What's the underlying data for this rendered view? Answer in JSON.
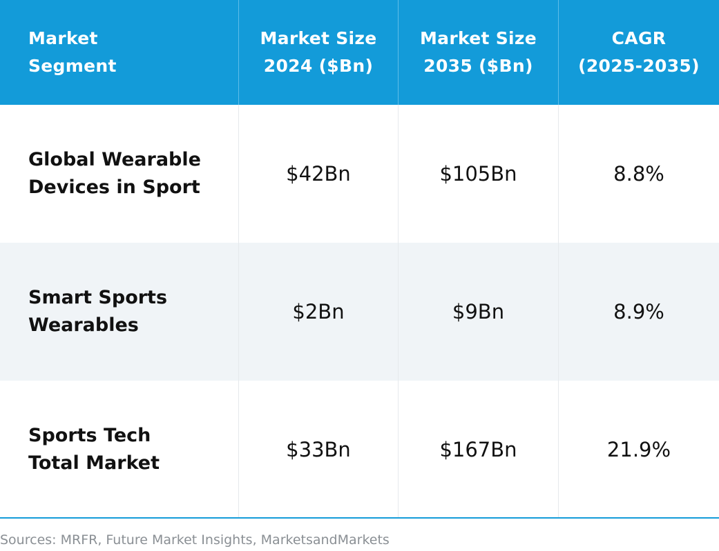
{
  "colors": {
    "header_bg": "#139bd9",
    "header_text": "#ffffff",
    "row_alt_bg": "#f0f4f7",
    "rule": "#139bd9",
    "source_text": "#8a8f94"
  },
  "chart_data": {
    "type": "table",
    "columns": [
      "Market\nSegment",
      "Market Size\n2024 ($Bn)",
      "Market Size\n2035 ($Bn)",
      "CAGR\n(2025-2035)"
    ],
    "rows": [
      {
        "segment": "Global Wearable\nDevices in Sport",
        "size_2024": "$42Bn",
        "size_2035": "$105Bn",
        "cagr": "8.8%"
      },
      {
        "segment": "Smart Sports\nWearables",
        "size_2024": "$2Bn",
        "size_2035": "$9Bn",
        "cagr": "8.9%"
      },
      {
        "segment": "Sports Tech\nTotal Market",
        "size_2024": "$33Bn",
        "size_2035": "$167Bn",
        "cagr": "21.9%"
      }
    ]
  },
  "source": "Sources: MRFR, Future Market Insights, MarketsandMarkets"
}
